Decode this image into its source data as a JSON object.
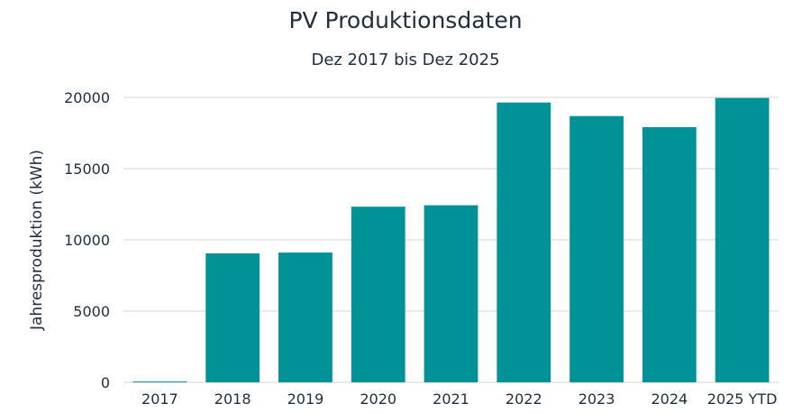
{
  "chart_data": {
    "type": "bar",
    "title": "PV Produktionsdaten",
    "subtitle": "Dez 2017 bis Dez 2025",
    "xlabel": "",
    "ylabel": "Jahresproduktion (kWh)",
    "categories": [
      "2017",
      "2018",
      "2019",
      "2020",
      "2021",
      "2022",
      "2023",
      "2024",
      "2025 YTD"
    ],
    "values": [
      60,
      9050,
      9110,
      12330,
      12430,
      19640,
      18690,
      17910,
      19960
    ],
    "ylim": [
      0,
      20000
    ],
    "yticks": [
      0,
      5000,
      10000,
      15000,
      20000
    ],
    "grid": true,
    "legend": "none",
    "bar_color": "#009296",
    "grid_color": "#e3e3e3"
  }
}
